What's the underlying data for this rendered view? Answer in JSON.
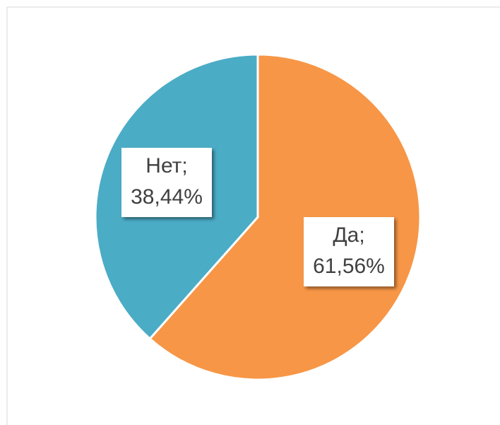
{
  "chart_data": {
    "type": "pie",
    "categories": [
      "Да",
      "Нет"
    ],
    "values": [
      61.56,
      38.44
    ],
    "value_labels": [
      "61,56%",
      "38,44%"
    ],
    "label_separator": ";",
    "colors": [
      "#F79646",
      "#4BACC6"
    ]
  }
}
